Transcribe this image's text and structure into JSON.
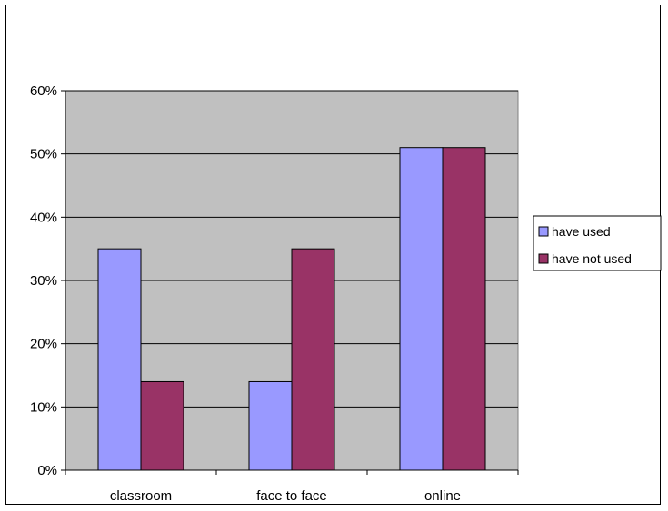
{
  "chart_data": {
    "type": "bar",
    "title": "",
    "xlabel": "",
    "ylabel": "",
    "categories": [
      "classroom",
      "face to face",
      "online"
    ],
    "series": [
      {
        "name": "have used",
        "values": [
          0.35,
          0.14,
          0.51
        ],
        "color": "#9999ff"
      },
      {
        "name": "have not used",
        "values": [
          0.14,
          0.35,
          0.51
        ],
        "color": "#993366"
      }
    ],
    "ylim": [
      0,
      0.6
    ],
    "yticks": [
      "0%",
      "10%",
      "20%",
      "30%",
      "40%",
      "50%",
      "60%"
    ],
    "grid": true,
    "plot_background": "#c0c0c0",
    "legend_position": "right"
  }
}
